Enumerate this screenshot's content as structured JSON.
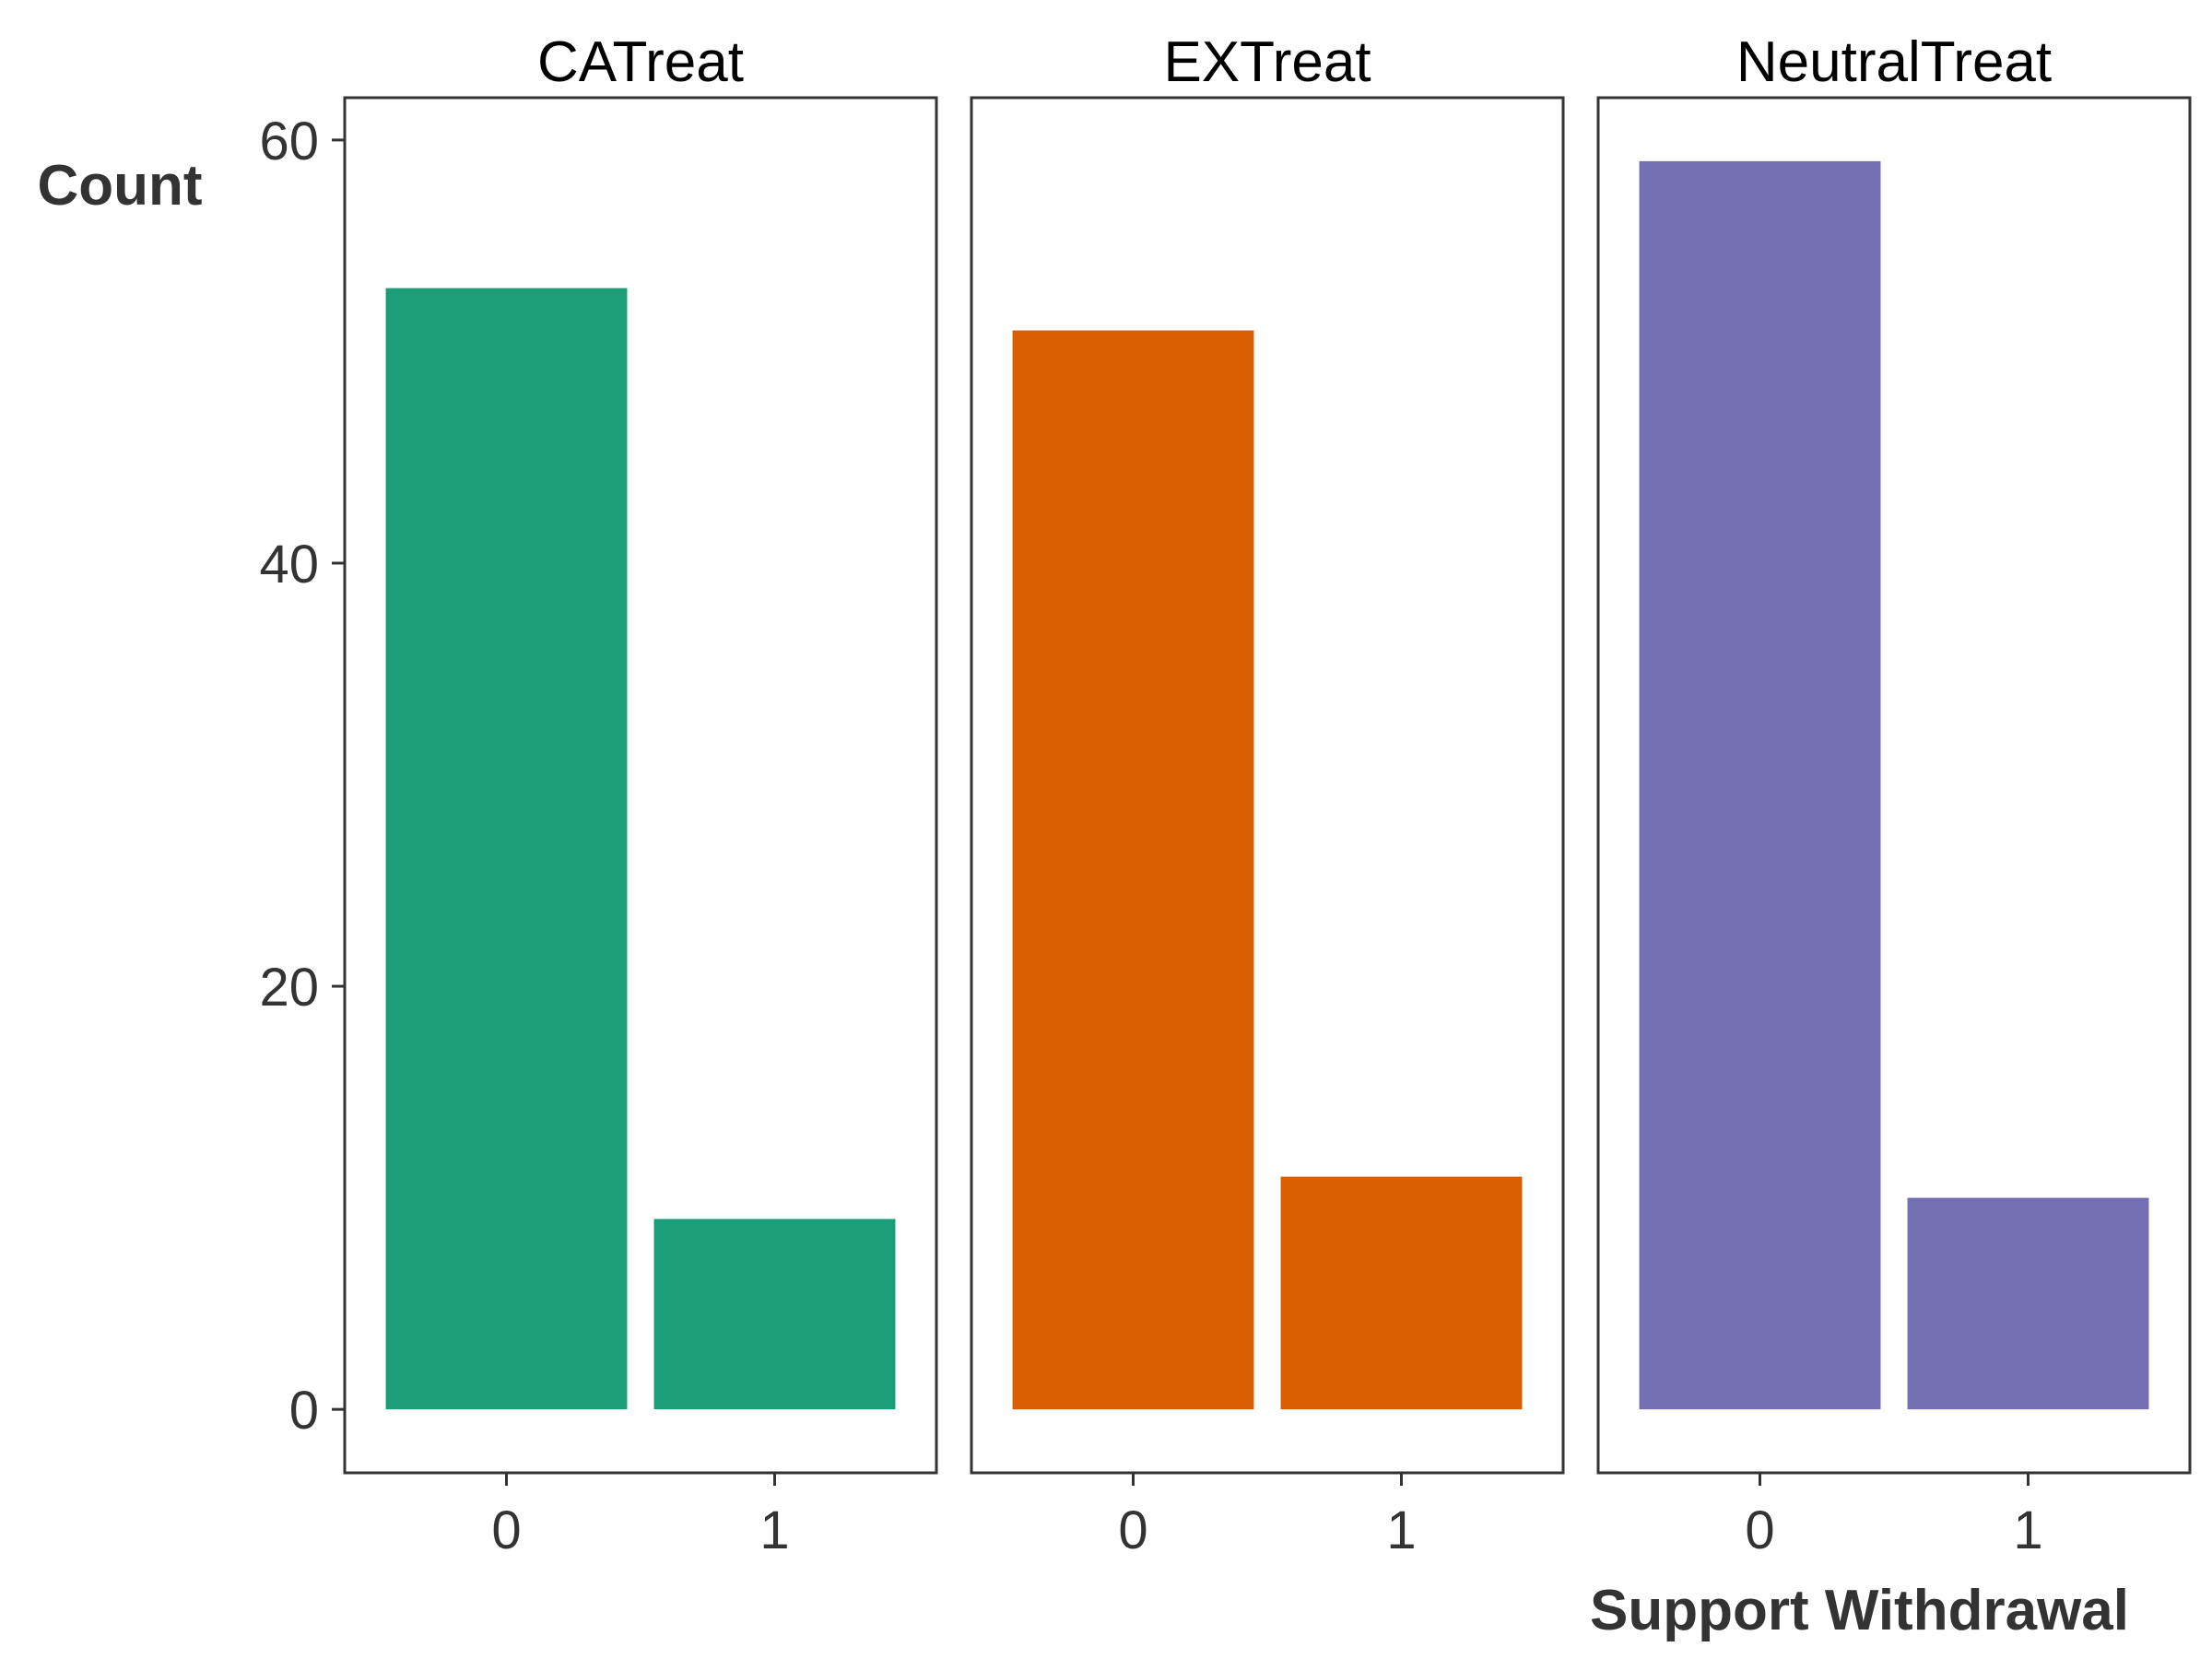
{
  "chart_data": {
    "type": "bar",
    "facets": [
      {
        "name": "CATreat",
        "categories": [
          "0",
          "1"
        ],
        "values": [
          53,
          9
        ],
        "color": "#1B9E77"
      },
      {
        "name": "EXTreat",
        "categories": [
          "0",
          "1"
        ],
        "values": [
          51,
          11
        ],
        "color": "#D95F02"
      },
      {
        "name": "NeutralTreat",
        "categories": [
          "0",
          "1"
        ],
        "values": [
          59,
          10
        ],
        "color": "#7570B3"
      }
    ],
    "ylabel": "Count",
    "xlabel": "Support Withdrawal",
    "ylim": [
      -3,
      62
    ],
    "yticks": [
      "0",
      "20",
      "40",
      "60"
    ],
    "grid": false,
    "legend": "none"
  },
  "colors": {
    "panel_border": "#333333",
    "axis_text": "#333333",
    "strip_text": "#000000"
  }
}
